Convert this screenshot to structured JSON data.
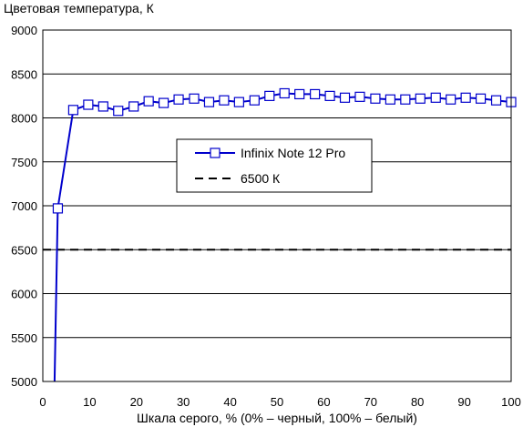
{
  "chart_data": {
    "type": "line",
    "title": "",
    "ylabel": "Цветовая температура, К",
    "xlabel": "Шкала серого, % (0% – черный, 100% – белый)",
    "xlim": [
      0,
      100
    ],
    "ylim": [
      5000,
      9000
    ],
    "x_ticks": [
      0,
      10,
      20,
      30,
      40,
      50,
      60,
      70,
      80,
      90,
      100
    ],
    "y_ticks": [
      5000,
      5500,
      6000,
      6500,
      7000,
      7500,
      8000,
      8500,
      9000
    ],
    "grid": "horizontal",
    "legend_position": "center",
    "series": [
      {
        "name": "Infinix Note 12 Pro",
        "color": "#0000cc",
        "marker": "square",
        "line_style": "solid",
        "x": [
          2.5,
          3.2,
          6.5,
          9.7,
          12.9,
          16.1,
          19.4,
          22.6,
          25.8,
          29.0,
          32.3,
          35.5,
          38.7,
          41.9,
          45.2,
          48.4,
          51.6,
          54.8,
          58.1,
          61.3,
          64.5,
          67.7,
          71.0,
          74.2,
          77.4,
          80.6,
          83.9,
          87.1,
          90.3,
          93.5,
          96.8,
          100
        ],
        "y": [
          5000,
          6970,
          8090,
          8150,
          8130,
          8080,
          8130,
          8190,
          8170,
          8210,
          8220,
          8180,
          8200,
          8180,
          8200,
          8250,
          8280,
          8270,
          8270,
          8250,
          8230,
          8240,
          8220,
          8210,
          8210,
          8220,
          8230,
          8210,
          8230,
          8220,
          8200,
          8180
        ],
        "markers_from_index": 1
      },
      {
        "name": "6500 К",
        "color": "#000000",
        "line_style": "dashed",
        "x": [
          0,
          100
        ],
        "y": [
          6500,
          6500
        ]
      }
    ]
  }
}
